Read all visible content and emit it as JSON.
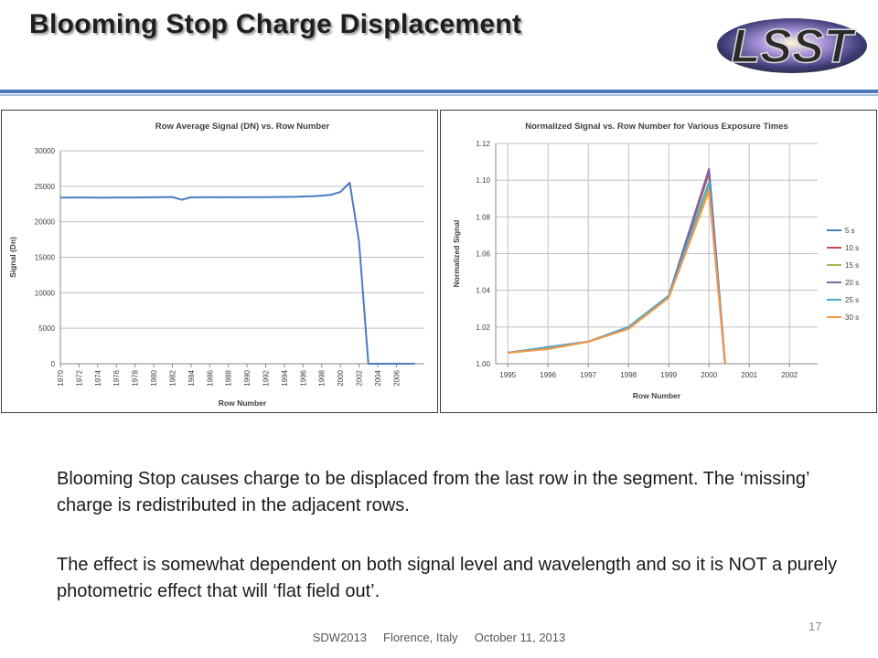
{
  "slide": {
    "title": "Blooming Stop Charge Displacement",
    "logo_text": "LSST",
    "paragraph1": "Blooming Stop causes charge to be displaced from the last row in the segment. The ‘missing’ charge is redistributed in the adjacent rows.",
    "paragraph2": "The effect is somewhat dependent on both signal level and wavelength and so it is NOT a purely photometric effect that will ‘flat field out’.",
    "footer": "SDW2013     Florence, Italy     October 11, 2013",
    "page_number": "17",
    "colors": {
      "rule_dark": "#4f79b8",
      "rule_light": "#a8bfe0"
    }
  },
  "chart_data": [
    {
      "type": "line",
      "title": "Row Average Signal (DN) vs. Row Number",
      "xlabel": "Row Number",
      "ylabel": "Signal (Dn)",
      "xlim": [
        1970,
        2009
      ],
      "ylim": [
        0,
        30000
      ],
      "yticks": [
        0,
        5000,
        10000,
        15000,
        20000,
        25000,
        30000
      ],
      "xticks": [
        1970,
        1972,
        1974,
        1976,
        1978,
        1980,
        1982,
        1984,
        1986,
        1988,
        1990,
        1992,
        1994,
        1996,
        1998,
        2000,
        2002,
        2004,
        2006
      ],
      "grid": "horizontal",
      "legend": "none",
      "series": [
        {
          "color": "#4a7bbf",
          "x": [
            1970,
            1971,
            1972,
            1973,
            1974,
            1975,
            1976,
            1977,
            1978,
            1979,
            1980,
            1981,
            1982,
            1983,
            1984,
            1985,
            1986,
            1987,
            1988,
            1989,
            1990,
            1991,
            1992,
            1993,
            1994,
            1995,
            1996,
            1997,
            1998,
            1999,
            2000,
            2001,
            2002,
            2003,
            2004,
            2005,
            2006,
            2007,
            2008
          ],
          "values": [
            23400,
            23420,
            23420,
            23420,
            23400,
            23400,
            23410,
            23420,
            23420,
            23440,
            23450,
            23460,
            23480,
            23100,
            23450,
            23450,
            23460,
            23450,
            23460,
            23450,
            23460,
            23460,
            23470,
            23480,
            23500,
            23520,
            23560,
            23600,
            23680,
            23800,
            24200,
            25500,
            17200,
            0,
            0,
            0,
            0,
            0,
            0
          ]
        }
      ]
    },
    {
      "type": "line",
      "title": "Normalized Signal vs. Row Number for Various Exposure Times",
      "xlabel": "Row Number",
      "ylabel": "Normalized Signal",
      "xlim": [
        1994.7,
        2002.7
      ],
      "ylim": [
        1.0,
        1.12
      ],
      "yticks": [
        1.0,
        1.02,
        1.04,
        1.06,
        1.08,
        1.1,
        1.12
      ],
      "ytick_labels": [
        "1.00",
        "1.02",
        "1.04",
        "1.06",
        "1.08",
        "1.10",
        "1.12"
      ],
      "xticks": [
        1995,
        1996,
        1997,
        1998,
        1999,
        2000,
        2001,
        2002
      ],
      "grid": "both",
      "legend": "right",
      "series": [
        {
          "name": "5 s",
          "color": "#4a7bbf",
          "x": [
            1995,
            1996,
            1997,
            1998,
            1999,
            2000,
            2000.4
          ],
          "values": [
            1.006,
            1.009,
            1.012,
            1.02,
            1.037,
            1.106,
            1.0
          ]
        },
        {
          "name": "10 s",
          "color": "#c0504d",
          "x": [
            1995,
            1996,
            1997,
            1998,
            1999,
            2000,
            2000.4
          ],
          "values": [
            1.006,
            1.009,
            1.012,
            1.02,
            1.037,
            1.104,
            1.0
          ]
        },
        {
          "name": "15 s",
          "color": "#9bbb59",
          "x": [
            1995,
            1996,
            1997,
            1998,
            1999,
            2000,
            2000.4
          ],
          "values": [
            1.006,
            1.008,
            1.012,
            1.019,
            1.036,
            1.097,
            1.0
          ]
        },
        {
          "name": "20 s",
          "color": "#8064a2",
          "x": [
            1995,
            1996,
            1997,
            1998,
            1999,
            2000,
            2000.4
          ],
          "values": [
            1.006,
            1.009,
            1.012,
            1.02,
            1.037,
            1.106,
            1.0
          ]
        },
        {
          "name": "25 s",
          "color": "#4bacc6",
          "x": [
            1995,
            1996,
            1997,
            1998,
            1999,
            2000,
            2000.4
          ],
          "values": [
            1.006,
            1.009,
            1.012,
            1.02,
            1.037,
            1.099,
            1.0
          ]
        },
        {
          "name": "30 s",
          "color": "#f79646",
          "x": [
            1995,
            1996,
            1997,
            1998,
            1999,
            2000,
            2000.4
          ],
          "values": [
            1.006,
            1.008,
            1.012,
            1.019,
            1.036,
            1.094,
            1.0
          ]
        }
      ]
    }
  ]
}
